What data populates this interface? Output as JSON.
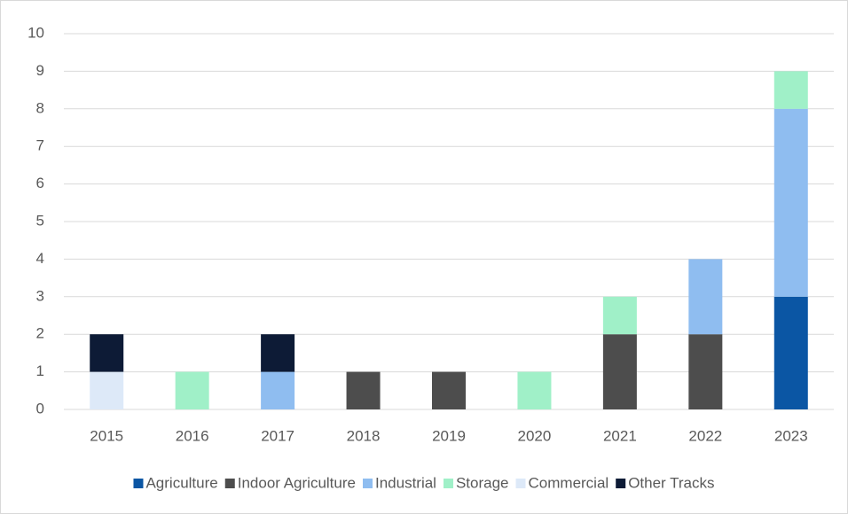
{
  "chart_data": {
    "type": "bar",
    "stacked": true,
    "categories": [
      "2015",
      "2016",
      "2017",
      "2018",
      "2019",
      "2020",
      "2021",
      "2022",
      "2023"
    ],
    "series": [
      {
        "name": "Agriculture",
        "color": "#0b56a4",
        "values": [
          0,
          0,
          0,
          0,
          0,
          0,
          0,
          0,
          3
        ]
      },
      {
        "name": "Indoor Agriculture",
        "color": "#4d4d4d",
        "values": [
          0,
          0,
          0,
          1,
          1,
          0,
          2,
          2,
          0
        ]
      },
      {
        "name": "Industrial",
        "color": "#8fbdf0",
        "values": [
          0,
          0,
          1,
          0,
          0,
          0,
          0,
          2,
          5
        ]
      },
      {
        "name": "Storage",
        "color": "#a0f0c8",
        "values": [
          0,
          1,
          0,
          0,
          0,
          1,
          1,
          0,
          1
        ]
      },
      {
        "name": "Commercial",
        "color": "#dde9f8",
        "values": [
          1,
          0,
          0,
          0,
          0,
          0,
          0,
          0,
          0
        ]
      },
      {
        "name": "Other Tracks",
        "color": "#0d1b36",
        "values": [
          1,
          0,
          1,
          0,
          0,
          0,
          0,
          0,
          0
        ]
      }
    ],
    "ylim": [
      0,
      10
    ],
    "yticks": [
      0,
      1,
      2,
      3,
      4,
      5,
      6,
      7,
      8,
      9,
      10
    ],
    "grid": true,
    "legend": "bottom"
  }
}
